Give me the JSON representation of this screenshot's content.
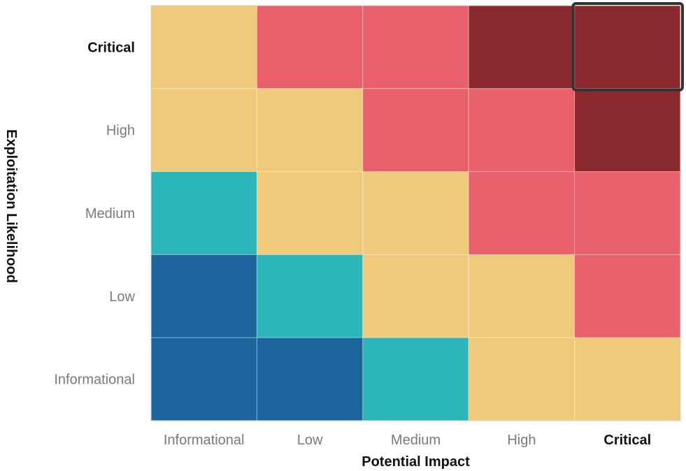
{
  "chart_data": {
    "type": "heatmap",
    "title": "",
    "xlabel": "Potential Impact",
    "ylabel": "Exploitation Likelihood",
    "x_categories": [
      "Informational",
      "Low",
      "Medium",
      "High",
      "Critical"
    ],
    "y_categories": [
      "Critical",
      "High",
      "Medium",
      "Low",
      "Informational"
    ],
    "emphasized_x": "Critical",
    "emphasized_y": "Critical",
    "highlighted_cell": {
      "x": "Critical",
      "y": "Critical"
    },
    "levels": {
      "critical": "#8b2a2e",
      "high": "#e8606a",
      "medium": "#f0ca7b",
      "low": "#2cb6b9",
      "informational": "#1c649c"
    },
    "cells": [
      [
        "medium",
        "high",
        "high",
        "critical",
        "critical"
      ],
      [
        "medium",
        "medium",
        "high",
        "high",
        "critical"
      ],
      [
        "low",
        "medium",
        "medium",
        "high",
        "high"
      ],
      [
        "informational",
        "low",
        "medium",
        "medium",
        "high"
      ],
      [
        "informational",
        "informational",
        "low",
        "medium",
        "medium"
      ]
    ],
    "grid": false,
    "legend": "none"
  }
}
